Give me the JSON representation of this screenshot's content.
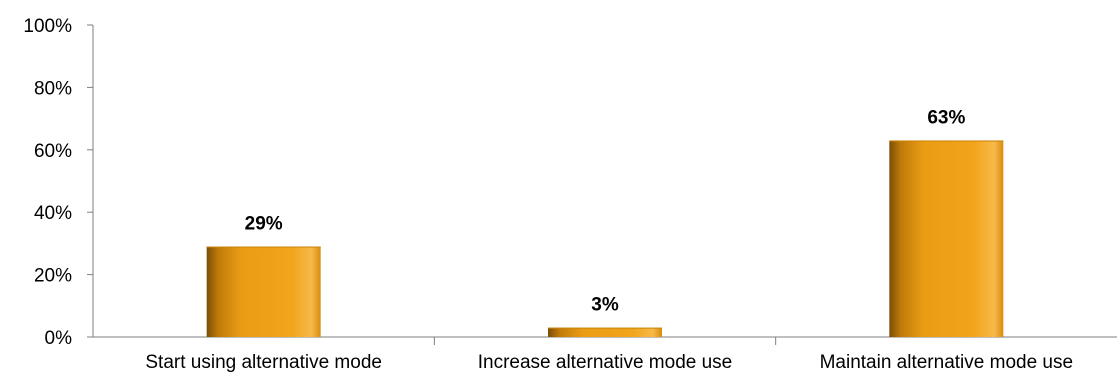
{
  "chart_data": {
    "type": "bar",
    "title": "",
    "xlabel": "",
    "ylabel": "",
    "categories": [
      "Start using alternative mode",
      "Increase alternative mode use",
      "Maintain alternative mode use"
    ],
    "values": [
      29,
      3,
      63
    ],
    "value_labels": [
      "29%",
      "3%",
      "63%"
    ],
    "ylim": [
      0,
      100
    ],
    "yticks": [
      0,
      20,
      40,
      60,
      80,
      100
    ],
    "ytick_labels": [
      "0%",
      "20%",
      "40%",
      "60%",
      "80%",
      "100%"
    ],
    "grid": false,
    "legend": "none",
    "colors": {
      "bar_light": "#F5A623",
      "bar_mid": "#E8980F",
      "bar_dark": "#8A5A06",
      "axis": "#7f7f7f"
    }
  }
}
